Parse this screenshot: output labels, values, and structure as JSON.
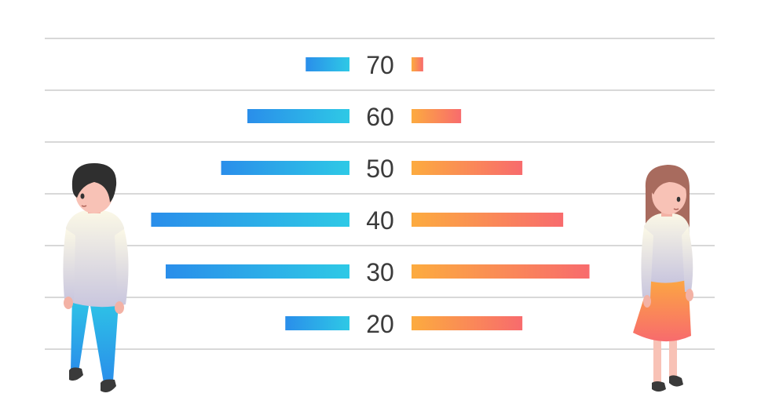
{
  "chart_data": {
    "type": "bar",
    "orientation": "horizontal-butterfly",
    "categories": [
      "70",
      "60",
      "50",
      "40",
      "30",
      "20"
    ],
    "series": [
      {
        "values": [
          7.5,
          17.5,
          22,
          34,
          31.5,
          11
        ]
      },
      {
        "values": [
          2,
          8.5,
          19,
          26,
          30.5,
          19
        ]
      }
    ],
    "xlim": [
      0,
      35
    ],
    "grid": true,
    "colors": {
      "left_gradient": [
        "#2a8eea",
        "#2ec9e6"
      ],
      "right_gradient": [
        "#fcab3f",
        "#f86b6d"
      ],
      "grid": "#d8d8d8",
      "label": "#3b3b3b"
    }
  },
  "figures": {
    "left_icon": "man-figure-icon",
    "right_icon": "woman-figure-icon"
  }
}
